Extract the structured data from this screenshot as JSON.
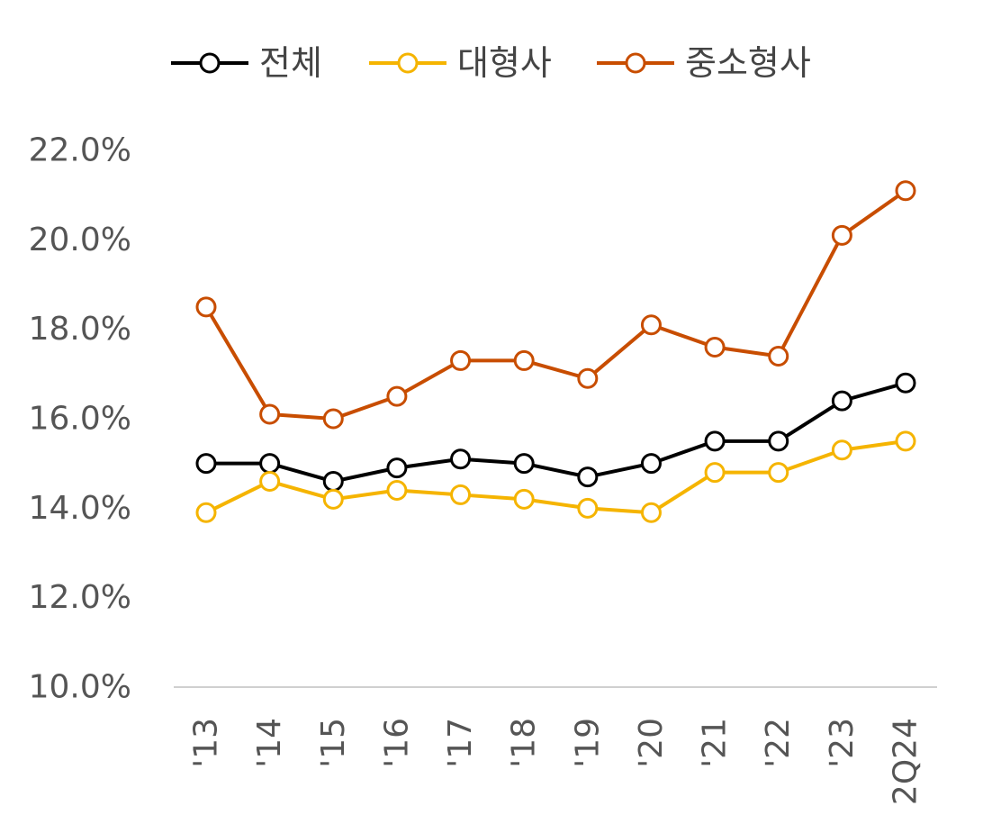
{
  "chart_data": {
    "type": "line",
    "categories": [
      "'13",
      "'14",
      "'15",
      "'16",
      "'17",
      "'18",
      "'19",
      "'20",
      "'21",
      "'22",
      "'23",
      "2Q24"
    ],
    "y_tick_labels": [
      "10.0%",
      "12.0%",
      "14.0%",
      "16.0%",
      "18.0%",
      "20.0%",
      "22.0%"
    ],
    "y_ticks": [
      10,
      12,
      14,
      16,
      18,
      20,
      22
    ],
    "ylim": [
      10,
      22
    ],
    "grid": false,
    "legend_position": "top",
    "series": [
      {
        "name": "전체",
        "color": "#000000",
        "values": [
          15.0,
          15.0,
          14.6,
          14.9,
          15.1,
          15.0,
          14.7,
          15.0,
          15.5,
          15.5,
          16.4,
          16.8
        ]
      },
      {
        "name": "대형사",
        "color": "#F5B400",
        "values": [
          13.9,
          14.6,
          14.2,
          14.4,
          14.3,
          14.2,
          14.0,
          13.9,
          14.8,
          14.8,
          15.3,
          15.5
        ]
      },
      {
        "name": "중소형사",
        "color": "#C84D00",
        "values": [
          18.5,
          16.1,
          16.0,
          16.5,
          17.3,
          17.3,
          16.9,
          18.1,
          17.6,
          17.4,
          20.1,
          21.1
        ]
      }
    ]
  }
}
